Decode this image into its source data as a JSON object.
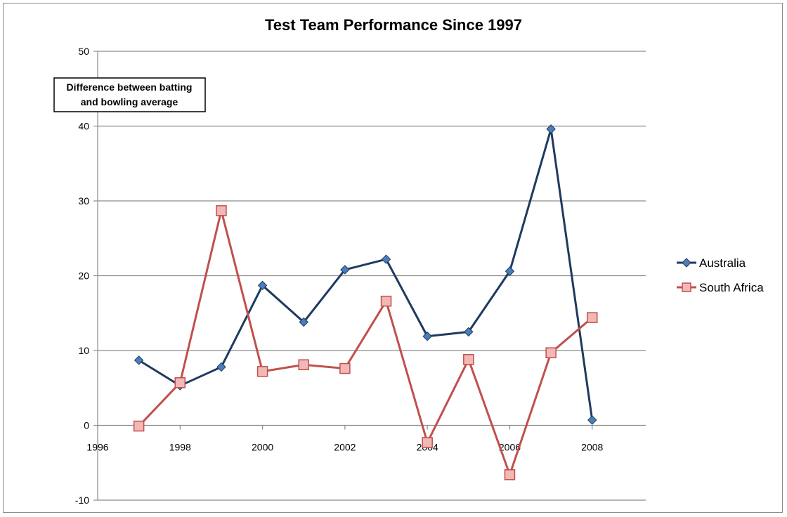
{
  "chart_data": {
    "type": "line",
    "title": "Test Team Performance Since 1997",
    "annotation": [
      "Difference between batting",
      "and bowling average"
    ],
    "xlim": [
      1996,
      2009.3
    ],
    "ylim": [
      -10,
      50
    ],
    "x_ticks": [
      1996,
      1998,
      2000,
      2002,
      2004,
      2006,
      2008
    ],
    "y_ticks": [
      -10,
      0,
      10,
      20,
      30,
      40,
      50
    ],
    "grid": "horizontal",
    "legend_position": "right",
    "series": [
      {
        "name": "Australia",
        "color": "#1f3a5f",
        "marker_color": "#4a7ebb",
        "marker": "diamond",
        "x": [
          1997,
          1998,
          1999,
          2000,
          2001,
          2002,
          2003,
          2004,
          2005,
          2006,
          2007,
          2008
        ],
        "y": [
          8.7,
          5.3,
          7.8,
          18.7,
          13.8,
          20.8,
          22.2,
          11.9,
          12.5,
          20.6,
          39.6,
          0.7
        ]
      },
      {
        "name": "South Africa",
        "color": "#c0504d",
        "marker_color": "#f2b8b6",
        "marker": "square",
        "x": [
          1997,
          1998,
          1999,
          2000,
          2001,
          2002,
          2003,
          2004,
          2005,
          2006,
          2007,
          2008
        ],
        "y": [
          -0.1,
          5.7,
          28.7,
          7.2,
          8.1,
          7.6,
          16.6,
          -2.3,
          8.8,
          -6.6,
          9.7,
          14.4
        ]
      }
    ]
  }
}
